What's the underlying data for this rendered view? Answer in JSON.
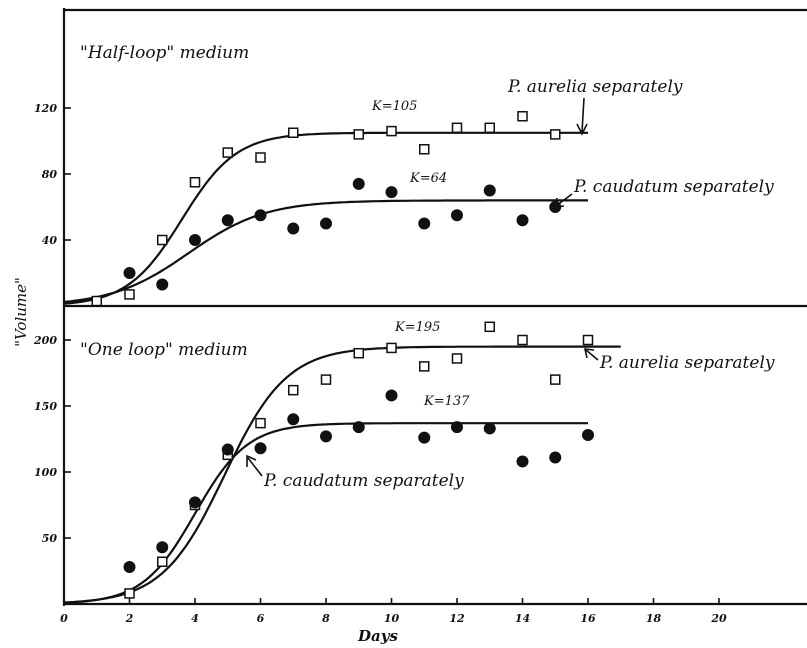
{
  "chart_data": [
    {
      "type": "scatter",
      "title": "\"Half-loop\" medium",
      "ylabel": "\"Volume\"",
      "xlim": [
        0,
        22
      ],
      "ylim": [
        0,
        140
      ],
      "yticks": [
        40,
        80,
        120
      ],
      "yticks_labels": [
        "40",
        "80",
        "120"
      ],
      "grid": false,
      "series": [
        {
          "name": "P. aurelia separately",
          "marker": "open-square",
          "K_label": "K=105",
          "K": 105,
          "x": [
            1,
            2,
            3,
            4,
            5,
            6,
            7,
            9,
            10,
            11,
            12,
            13,
            14,
            15
          ],
          "y": [
            3,
            7,
            40,
            75,
            93,
            90,
            105,
            104,
            106,
            95,
            108,
            108,
            115,
            104
          ],
          "curve": {
            "K": 105,
            "r": 1.2,
            "x0": 3.6,
            "xmax": 16
          }
        },
        {
          "name": "P. caudatum separately",
          "marker": "filled-circle",
          "K_label": "K=64",
          "K": 64,
          "x": [
            2,
            3,
            4,
            5,
            6,
            7,
            8,
            9,
            10,
            11,
            12,
            13,
            14,
            15
          ],
          "y": [
            20,
            13,
            40,
            52,
            55,
            47,
            50,
            74,
            69,
            50,
            55,
            70,
            52,
            60
          ],
          "curve": {
            "K": 64,
            "r": 0.85,
            "x0": 3.8,
            "xmax": 16
          }
        }
      ]
    },
    {
      "type": "scatter",
      "title": "\"One loop\" medium",
      "xlabel": "Days",
      "ylabel": "\"Volume\"",
      "xlim": [
        0,
        22
      ],
      "ylim": [
        0,
        230
      ],
      "xticks": [
        0,
        2,
        4,
        6,
        8,
        10,
        12,
        14,
        16,
        18,
        20
      ],
      "xticks_labels": [
        "0",
        "2",
        "4",
        "6",
        "8",
        "10",
        "12",
        "14",
        "16",
        "18",
        "20"
      ],
      "yticks": [
        50,
        100,
        150,
        200
      ],
      "yticks_labels": [
        "50",
        "100",
        "150",
        "200"
      ],
      "grid": false,
      "series": [
        {
          "name": "P. aurelia separately",
          "marker": "open-square",
          "K_label": "K=195",
          "K": 195,
          "x": [
            2,
            3,
            4,
            5,
            6,
            7,
            8,
            9,
            10,
            11,
            12,
            13,
            14,
            15,
            16
          ],
          "y": [
            8,
            32,
            75,
            113,
            137,
            162,
            170,
            190,
            194,
            180,
            186,
            210,
            200,
            170,
            200
          ],
          "curve": {
            "K": 195,
            "r": 1.05,
            "x0": 4.9,
            "xmax": 17
          }
        },
        {
          "name": "P. caudatum separately",
          "marker": "filled-circle",
          "K_label": "K=137",
          "K": 137,
          "x": [
            2,
            3,
            4,
            5,
            6,
            7,
            8,
            9,
            10,
            11,
            12,
            13,
            14,
            15,
            16
          ],
          "y": [
            28,
            43,
            77,
            117,
            118,
            140,
            127,
            134,
            158,
            126,
            134,
            133,
            108,
            111,
            128
          ],
          "curve": {
            "K": 137,
            "r": 1.25,
            "x0": 4.0,
            "xmax": 16
          }
        }
      ]
    }
  ]
}
